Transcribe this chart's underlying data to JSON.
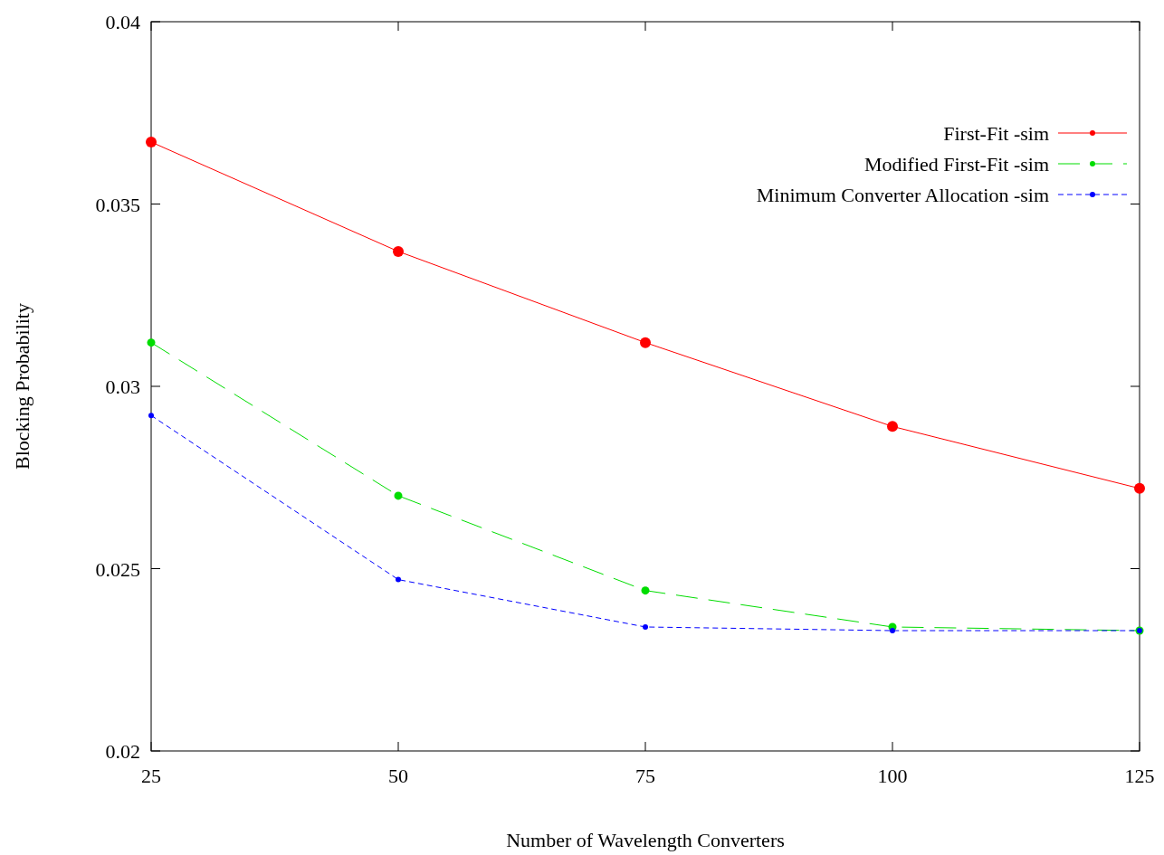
{
  "chart_data": {
    "type": "line",
    "xlabel": "Number of Wavelength Converters",
    "ylabel": "Blocking Probability",
    "x": [
      25,
      50,
      75,
      100,
      125
    ],
    "xlim": [
      25,
      125
    ],
    "xticks": [
      25,
      50,
      75,
      100,
      125
    ],
    "ylim": [
      0.02,
      0.04
    ],
    "yticks": [
      0.02,
      0.025,
      0.03,
      0.035,
      0.04
    ],
    "series": [
      {
        "name": "First-Fit -sim",
        "color": "#ff0000",
        "line_style": "solid",
        "values": [
          0.0367,
          0.0337,
          0.0312,
          0.0289,
          0.0272
        ]
      },
      {
        "name": "Modified First-Fit -sim",
        "color": "#00dd00",
        "line_style": "dashed",
        "values": [
          0.0312,
          0.027,
          0.0244,
          0.0234,
          0.0233
        ]
      },
      {
        "name": "Minimum Converter Allocation -sim",
        "color": "#0000ff",
        "line_style": "dotted",
        "values": [
          0.0292,
          0.0247,
          0.0234,
          0.0233,
          0.0233
        ]
      }
    ],
    "marker": "circle",
    "legend": "top right",
    "grid": false
  }
}
